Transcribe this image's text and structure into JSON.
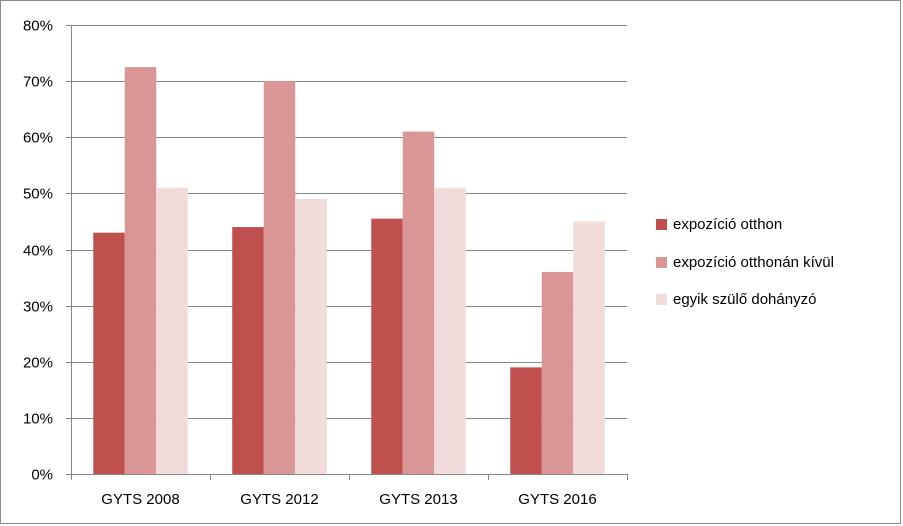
{
  "chart_data": {
    "type": "bar",
    "title": "",
    "xlabel": "",
    "ylabel": "",
    "categories": [
      "GYTS 2008",
      "GYTS 2012",
      "GYTS 2013",
      "GYTS 2016"
    ],
    "series": [
      {
        "name": "expozíció otthon",
        "color": "#c0504d",
        "values": [
          43,
          44,
          45.5,
          19
        ]
      },
      {
        "name": "expozíció otthonán kívül",
        "color": "#d99694",
        "values": [
          72.5,
          70,
          61,
          36
        ]
      },
      {
        "name": "egyik szülő dohányzó",
        "color": "#f2dcdb",
        "values": [
          51,
          49,
          51,
          45
        ]
      }
    ],
    "ylim": [
      0,
      80
    ],
    "yticks": [
      0,
      10,
      20,
      30,
      40,
      50,
      60,
      70,
      80
    ],
    "ytick_labels": [
      "0%",
      "10%",
      "20%",
      "30%",
      "40%",
      "50%",
      "60%",
      "70%",
      "80%"
    ],
    "grid": true,
    "legend_position": "right"
  }
}
